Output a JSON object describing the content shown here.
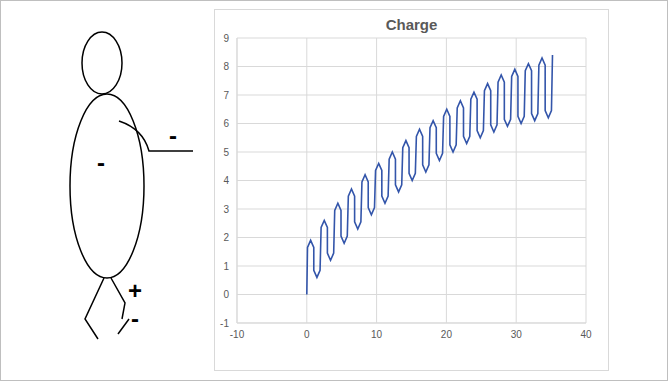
{
  "chart_data": {
    "type": "line",
    "title": "Charge",
    "color": "#3355aa",
    "grid": true,
    "annotations": [
      "-",
      "-",
      "+",
      "-"
    ],
    "xlim": [
      -10,
      40
    ],
    "xticks": [
      -10,
      0,
      10,
      20,
      30,
      40
    ],
    "ylim": [
      -1,
      9
    ],
    "yticks": [
      -1,
      0,
      1,
      2,
      3,
      4,
      5,
      6,
      7,
      8,
      9
    ],
    "x": [
      0,
      0.1,
      0.55,
      1.0,
      1.0,
      1.45,
      1.9,
      2.05,
      2.5,
      2.95,
      2.95,
      3.4,
      3.85,
      4.0,
      4.45,
      4.9,
      4.9,
      5.35,
      5.8,
      5.95,
      6.4,
      6.85,
      6.85,
      7.3,
      7.75,
      7.9,
      8.35,
      8.8,
      8.8,
      9.25,
      9.7,
      9.85,
      10.3,
      10.75,
      10.75,
      11.2,
      11.65,
      11.8,
      12.25,
      12.7,
      12.7,
      13.15,
      13.6,
      13.75,
      14.2,
      14.65,
      14.65,
      15.1,
      15.55,
      15.7,
      16.15,
      16.6,
      16.6,
      17.05,
      17.5,
      17.65,
      18.1,
      18.55,
      18.55,
      19.0,
      19.45,
      19.6,
      20.05,
      20.5,
      20.5,
      20.95,
      21.4,
      21.55,
      22.0,
      22.45,
      22.45,
      22.9,
      23.35,
      23.5,
      23.95,
      24.4,
      24.4,
      24.85,
      25.3,
      25.45,
      25.9,
      26.35,
      26.35,
      26.8,
      27.25,
      27.4,
      27.85,
      28.3,
      28.3,
      28.75,
      29.2,
      29.35,
      29.8,
      30.25,
      30.25,
      30.7,
      31.15,
      31.3,
      31.75,
      32.2,
      32.2,
      32.65,
      33.1,
      33.25,
      33.7,
      34.15,
      34.15,
      34.6,
      35.05,
      35.2
    ],
    "values": [
      0,
      1.65,
      1.9,
      1.65,
      0.85,
      0.6,
      0.85,
      2.35,
      2.6,
      2.35,
      1.45,
      1.2,
      1.45,
      2.95,
      3.2,
      2.95,
      2.05,
      1.8,
      2.05,
      3.45,
      3.7,
      3.45,
      2.55,
      2.3,
      2.55,
      3.95,
      4.2,
      3.95,
      3.05,
      2.8,
      3.05,
      4.35,
      4.6,
      4.35,
      3.45,
      3.2,
      3.45,
      4.75,
      5.0,
      4.75,
      3.85,
      3.6,
      3.85,
      5.15,
      5.4,
      5.15,
      4.25,
      4.0,
      4.25,
      5.55,
      5.8,
      5.55,
      4.55,
      4.3,
      4.55,
      5.85,
      6.1,
      5.85,
      4.95,
      4.7,
      4.95,
      6.25,
      6.5,
      6.25,
      5.25,
      5.0,
      5.25,
      6.55,
      6.8,
      6.55,
      5.55,
      5.3,
      5.55,
      6.85,
      7.1,
      6.85,
      5.75,
      5.5,
      5.75,
      7.15,
      7.4,
      7.15,
      5.95,
      5.7,
      5.95,
      7.45,
      7.7,
      7.45,
      6.15,
      5.9,
      6.15,
      7.65,
      7.9,
      7.65,
      6.25,
      6.0,
      6.25,
      7.85,
      8.1,
      7.85,
      6.35,
      6.1,
      6.35,
      8.05,
      8.3,
      8.05,
      6.45,
      6.2,
      6.45,
      8.4
    ]
  }
}
